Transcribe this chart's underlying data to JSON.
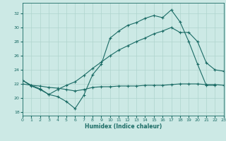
{
  "xlabel": "Humidex (Indice chaleur)",
  "xlim": [
    0,
    23
  ],
  "ylim": [
    17.5,
    33.5
  ],
  "xticks": [
    0,
    1,
    2,
    3,
    4,
    5,
    6,
    7,
    8,
    9,
    10,
    11,
    12,
    13,
    14,
    15,
    16,
    17,
    18,
    19,
    20,
    21,
    22,
    23
  ],
  "yticks": [
    18,
    20,
    22,
    24,
    26,
    28,
    30,
    32
  ],
  "background_color": "#cce9e5",
  "grid_color": "#aed4ce",
  "line_color": "#1a6b65",
  "line1_x": [
    0,
    1,
    2,
    3,
    4,
    5,
    6,
    7,
    8,
    9,
    10,
    11,
    12,
    13,
    14,
    15,
    16,
    17,
    18,
    19,
    20,
    21,
    22
  ],
  "line1_y": [
    22.5,
    21.7,
    21.2,
    20.5,
    20.2,
    19.5,
    18.5,
    20.4,
    23.3,
    24.8,
    28.5,
    29.5,
    30.3,
    30.7,
    31.3,
    31.7,
    31.4,
    32.5,
    30.8,
    28.0,
    24.8,
    21.8,
    21.8
  ],
  "line2_x": [
    0,
    1,
    2,
    3,
    4,
    5,
    6,
    7,
    8,
    9,
    10,
    11,
    12,
    13,
    14,
    15,
    16,
    17,
    18,
    19,
    20,
    21,
    22,
    23
  ],
  "line2_y": [
    22.0,
    21.8,
    21.7,
    21.5,
    21.4,
    21.2,
    21.0,
    21.2,
    21.5,
    21.6,
    21.6,
    21.7,
    21.7,
    21.7,
    21.8,
    21.8,
    21.8,
    21.9,
    22.0,
    22.0,
    22.0,
    21.9,
    21.9,
    21.8
  ],
  "line3_x": [
    0,
    1,
    2,
    3,
    4,
    5,
    6,
    7,
    8,
    9,
    10,
    11,
    12,
    13,
    14,
    15,
    16,
    17,
    18,
    19,
    20,
    21,
    22,
    23
  ],
  "line3_y": [
    22.5,
    21.8,
    21.3,
    20.5,
    21.2,
    21.8,
    22.3,
    23.2,
    24.2,
    25.1,
    26.0,
    26.8,
    27.4,
    28.0,
    28.5,
    29.1,
    29.5,
    30.0,
    29.3,
    29.3,
    28.0,
    25.0,
    24.0,
    23.8
  ]
}
